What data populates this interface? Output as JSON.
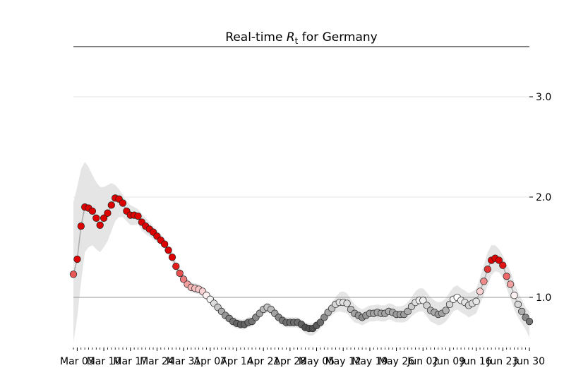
{
  "chart_data": {
    "type": "scatter",
    "title_main": "Real-time ",
    "title_var": "R",
    "title_sub": "t",
    "title_rest": " for Germany",
    "xlabel": "",
    "ylabel": "",
    "x_start": "Mar 02",
    "x_end": "Jun 30",
    "ylim": [
      0.5,
      3.5
    ],
    "y_ticks": [
      1.0,
      2.0,
      3.0
    ],
    "y_tick_labels": [
      "1.0",
      "2.0",
      "3.0"
    ],
    "x_tick_labels": [
      "Mar 03",
      "Mar 10",
      "Mar 17",
      "Mar 24",
      "Mar 31",
      "Apr 07",
      "Apr 14",
      "Apr 21",
      "Apr 28",
      "May 05",
      "May 12",
      "May 19",
      "May 26",
      "Jun 02",
      "Jun 09",
      "Jun 16",
      "Jun 23",
      "Jun 30"
    ],
    "reference_line": 1.0,
    "grid": "horizontal",
    "color_scale": {
      "low": "#505050",
      "mid": "#ffffff",
      "high": "#dd0000"
    },
    "series": [
      {
        "rt": [
          1.23,
          1.38,
          1.71,
          1.9,
          1.89,
          1.86,
          1.79,
          1.72,
          1.79,
          1.84,
          1.92,
          1.99,
          1.98,
          1.94,
          1.86,
          1.82,
          1.82,
          1.81,
          1.75,
          1.71,
          1.68,
          1.65,
          1.61,
          1.57,
          1.53,
          1.47,
          1.4,
          1.31,
          1.24,
          1.18,
          1.13,
          1.1,
          1.09,
          1.08,
          1.06,
          1.02,
          0.98,
          0.94,
          0.9,
          0.86,
          0.82,
          0.79,
          0.76,
          0.74,
          0.73,
          0.73,
          0.75,
          0.76,
          0.8,
          0.84,
          0.88,
          0.9,
          0.88,
          0.84,
          0.8,
          0.77,
          0.75,
          0.75,
          0.75,
          0.75,
          0.73,
          0.7,
          0.69,
          0.69,
          0.72,
          0.75,
          0.8,
          0.85,
          0.89,
          0.93,
          0.95,
          0.95,
          0.94,
          0.88,
          0.84,
          0.82,
          0.8,
          0.82,
          0.84,
          0.84,
          0.85,
          0.84,
          0.84,
          0.86,
          0.85,
          0.83,
          0.83,
          0.83,
          0.86,
          0.91,
          0.95,
          0.97,
          0.97,
          0.92,
          0.87,
          0.85,
          0.83,
          0.84,
          0.87,
          0.93,
          0.98,
          1.0,
          0.97,
          0.95,
          0.92,
          0.94,
          0.96,
          1.06,
          1.16,
          1.28,
          1.37,
          1.39,
          1.37,
          1.32,
          1.21,
          1.13,
          1.02,
          0.93,
          0.86,
          0.8,
          0.76
        ],
        "upper": [
          1.95,
          2.1,
          2.28,
          2.35,
          2.3,
          2.22,
          2.15,
          2.1,
          2.1,
          2.12,
          2.14,
          2.12,
          2.08,
          2.02,
          1.96,
          1.92,
          1.9,
          1.88,
          1.83,
          1.79,
          1.75,
          1.71,
          1.67,
          1.63,
          1.58,
          1.52,
          1.45,
          1.36,
          1.29,
          1.23,
          1.18,
          1.15,
          1.14,
          1.13,
          1.11,
          1.07,
          1.03,
          0.99,
          0.95,
          0.91,
          0.87,
          0.84,
          0.81,
          0.79,
          0.78,
          0.78,
          0.8,
          0.81,
          0.85,
          0.89,
          0.93,
          0.95,
          0.93,
          0.89,
          0.85,
          0.82,
          0.8,
          0.8,
          0.8,
          0.8,
          0.78,
          0.75,
          0.74,
          0.74,
          0.77,
          0.8,
          0.85,
          0.9,
          0.95,
          1.0,
          1.05,
          1.06,
          1.04,
          0.98,
          0.93,
          0.9,
          0.88,
          0.9,
          0.92,
          0.92,
          0.93,
          0.92,
          0.92,
          0.94,
          0.93,
          0.91,
          0.91,
          0.92,
          0.95,
          1.0,
          1.06,
          1.09,
          1.09,
          1.05,
          1.0,
          0.97,
          0.95,
          0.96,
          0.99,
          1.05,
          1.1,
          1.12,
          1.09,
          1.07,
          1.04,
          1.06,
          1.08,
          1.2,
          1.32,
          1.45,
          1.52,
          1.52,
          1.48,
          1.42,
          1.33,
          1.26,
          1.15,
          1.05,
          0.98,
          0.9,
          0.86
        ],
        "lower": [
          0.55,
          0.8,
          1.15,
          1.45,
          1.5,
          1.52,
          1.48,
          1.45,
          1.5,
          1.56,
          1.66,
          1.76,
          1.8,
          1.8,
          1.76,
          1.72,
          1.72,
          1.73,
          1.67,
          1.63,
          1.61,
          1.58,
          1.55,
          1.52,
          1.48,
          1.42,
          1.35,
          1.26,
          1.19,
          1.13,
          1.08,
          1.05,
          1.04,
          1.03,
          1.01,
          0.97,
          0.93,
          0.89,
          0.85,
          0.81,
          0.77,
          0.74,
          0.71,
          0.69,
          0.68,
          0.68,
          0.7,
          0.71,
          0.75,
          0.79,
          0.83,
          0.85,
          0.83,
          0.79,
          0.75,
          0.72,
          0.7,
          0.7,
          0.7,
          0.7,
          0.68,
          0.64,
          0.62,
          0.62,
          0.65,
          0.69,
          0.74,
          0.79,
          0.82,
          0.85,
          0.86,
          0.85,
          0.84,
          0.79,
          0.75,
          0.74,
          0.72,
          0.74,
          0.76,
          0.76,
          0.77,
          0.76,
          0.76,
          0.78,
          0.77,
          0.75,
          0.75,
          0.75,
          0.77,
          0.81,
          0.84,
          0.86,
          0.86,
          0.81,
          0.76,
          0.74,
          0.72,
          0.73,
          0.76,
          0.81,
          0.86,
          0.88,
          0.85,
          0.83,
          0.8,
          0.82,
          0.84,
          0.93,
          1.02,
          1.12,
          1.22,
          1.26,
          1.25,
          1.2,
          1.09,
          0.99,
          0.88,
          0.8,
          0.74,
          0.68,
          0.6
        ]
      }
    ]
  }
}
